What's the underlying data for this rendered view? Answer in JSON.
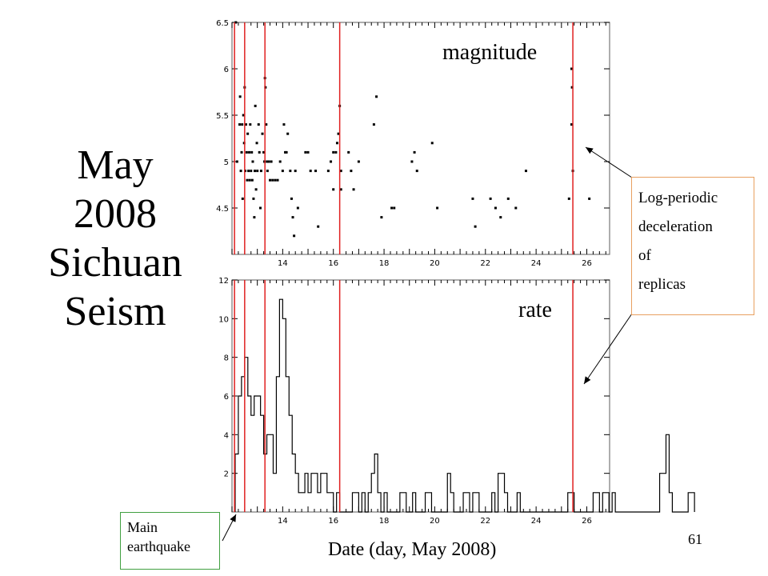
{
  "title_lines": [
    "May",
    "2008",
    "Sichuan",
    "Seism"
  ],
  "callout": {
    "lines": [
      "Log-periodic",
      "deceleration",
      "of",
      "replicas"
    ]
  },
  "main_box": {
    "lines": [
      "Main",
      "earthquake"
    ]
  },
  "x_axis_label": "Date (day, May 2008)",
  "page_number": "61",
  "colors": {
    "marker_lines": "#e02020",
    "data": "#000000",
    "callout_border": "#e8a060",
    "main_box_border": "#41a041",
    "arrow": "#000000"
  },
  "chart_data": [
    {
      "type": "scatter",
      "panel_label": "magnitude",
      "xlim": [
        12.0,
        26.9
      ],
      "ylim": [
        4.0,
        6.5
      ],
      "x_ticks": [
        14,
        16,
        18,
        20,
        22,
        24,
        26
      ],
      "y_ticks": [
        4.5,
        5,
        5.5,
        6,
        6.5
      ],
      "y_tick_labels": [
        "4.5",
        "5",
        "5.5",
        "6",
        "6.5"
      ],
      "vertical_markers": [
        12.1,
        12.5,
        13.3,
        16.25,
        25.45
      ],
      "points": [
        [
          12.15,
          6.5
        ],
        [
          12.2,
          5.0
        ],
        [
          12.3,
          5.4
        ],
        [
          12.32,
          5.7
        ],
        [
          12.35,
          4.9
        ],
        [
          12.38,
          5.1
        ],
        [
          12.4,
          5.4
        ],
        [
          12.42,
          4.6
        ],
        [
          12.45,
          5.5
        ],
        [
          12.48,
          5.2
        ],
        [
          12.5,
          5.8
        ],
        [
          12.52,
          4.9
        ],
        [
          12.55,
          5.4
        ],
        [
          12.58,
          5.1
        ],
        [
          12.6,
          4.8
        ],
        [
          12.62,
          5.3
        ],
        [
          12.65,
          4.9
        ],
        [
          12.68,
          5.1
        ],
        [
          12.7,
          4.8
        ],
        [
          12.72,
          5.4
        ],
        [
          12.75,
          4.9
        ],
        [
          12.78,
          5.1
        ],
        [
          12.8,
          4.8
        ],
        [
          12.82,
          5.0
        ],
        [
          12.85,
          4.6
        ],
        [
          12.88,
          4.4
        ],
        [
          12.9,
          4.9
        ],
        [
          12.92,
          5.6
        ],
        [
          12.95,
          4.7
        ],
        [
          12.98,
          5.2
        ],
        [
          13.0,
          4.9
        ],
        [
          13.05,
          5.4
        ],
        [
          13.08,
          5.1
        ],
        [
          13.12,
          4.5
        ],
        [
          13.15,
          4.9
        ],
        [
          13.2,
          5.3
        ],
        [
          13.25,
          5.1
        ],
        [
          13.28,
          5.0
        ],
        [
          13.3,
          5.9
        ],
        [
          13.32,
          5.8
        ],
        [
          13.35,
          5.4
        ],
        [
          13.38,
          5.0
        ],
        [
          13.4,
          4.9
        ],
        [
          13.45,
          5.0
        ],
        [
          13.5,
          4.8
        ],
        [
          13.55,
          5.0
        ],
        [
          13.6,
          4.8
        ],
        [
          13.7,
          4.8
        ],
        [
          13.8,
          4.8
        ],
        [
          13.9,
          5.0
        ],
        [
          14.0,
          4.9
        ],
        [
          14.05,
          5.4
        ],
        [
          14.1,
          5.1
        ],
        [
          14.15,
          5.1
        ],
        [
          14.2,
          5.3
        ],
        [
          14.3,
          4.9
        ],
        [
          14.35,
          4.6
        ],
        [
          14.4,
          4.4
        ],
        [
          14.45,
          4.2
        ],
        [
          14.5,
          4.9
        ],
        [
          14.6,
          4.5
        ],
        [
          14.9,
          5.1
        ],
        [
          15.0,
          5.1
        ],
        [
          15.1,
          4.9
        ],
        [
          15.3,
          4.9
        ],
        [
          15.4,
          4.3
        ],
        [
          15.8,
          4.9
        ],
        [
          15.9,
          5.0
        ],
        [
          16.0,
          4.7
        ],
        [
          16.0,
          5.1
        ],
        [
          16.1,
          5.1
        ],
        [
          16.15,
          5.2
        ],
        [
          16.2,
          5.3
        ],
        [
          16.25,
          5.6
        ],
        [
          16.3,
          4.9
        ],
        [
          16.3,
          4.7
        ],
        [
          16.6,
          5.1
        ],
        [
          16.7,
          4.9
        ],
        [
          16.8,
          4.7
        ],
        [
          17.0,
          5.0
        ],
        [
          17.6,
          5.4
        ],
        [
          17.7,
          5.7
        ],
        [
          17.9,
          4.4
        ],
        [
          18.3,
          4.5
        ],
        [
          18.4,
          4.5
        ],
        [
          19.1,
          5.0
        ],
        [
          19.2,
          5.1
        ],
        [
          19.3,
          4.9
        ],
        [
          19.9,
          5.2
        ],
        [
          20.1,
          4.5
        ],
        [
          21.5,
          4.6
        ],
        [
          21.6,
          4.3
        ],
        [
          22.2,
          4.6
        ],
        [
          22.4,
          4.5
        ],
        [
          22.6,
          4.4
        ],
        [
          22.9,
          4.6
        ],
        [
          23.2,
          4.5
        ],
        [
          23.6,
          4.9
        ],
        [
          25.3,
          4.6
        ],
        [
          25.4,
          5.4
        ],
        [
          25.4,
          6.0
        ],
        [
          25.42,
          5.8
        ],
        [
          25.45,
          4.9
        ],
        [
          26.1,
          4.6
        ]
      ]
    },
    {
      "type": "line",
      "subtype": "step",
      "panel_label": "rate",
      "xlim": [
        12.0,
        26.9
      ],
      "ylim": [
        0,
        12
      ],
      "x_ticks": [
        14,
        16,
        18,
        20,
        22,
        24,
        26
      ],
      "y_ticks": [
        2,
        4,
        6,
        8,
        10,
        12
      ],
      "y_tick_labels": [
        "2",
        "4",
        "6",
        "8",
        "10",
        "12"
      ],
      "vertical_markers": [
        12.1,
        12.5,
        13.3,
        16.25,
        25.45
      ],
      "bin_width": 0.125,
      "bin_start": 12.125,
      "values": [
        3,
        6,
        7,
        8,
        6,
        5,
        6,
        6,
        5,
        3,
        4,
        4,
        2,
        7,
        11,
        10,
        7,
        5,
        3,
        2,
        1,
        1,
        2,
        1,
        2,
        2,
        1,
        2,
        2,
        1,
        1,
        0,
        1,
        0,
        0,
        0,
        0,
        1,
        1,
        0,
        1,
        0,
        1,
        2,
        3,
        1,
        0,
        1,
        0,
        0,
        0,
        0,
        1,
        1,
        0,
        0,
        1,
        0,
        0,
        0,
        1,
        1,
        0,
        0,
        0,
        0,
        0,
        2,
        1,
        0,
        0,
        0,
        1,
        1,
        0,
        1,
        1,
        0,
        0,
        0,
        0,
        1,
        0,
        2,
        2,
        1,
        0,
        0,
        0,
        1,
        0,
        0,
        0,
        0,
        0,
        0,
        0,
        0,
        0,
        0,
        0,
        0,
        0,
        0,
        0,
        1,
        1,
        0,
        0,
        0,
        0,
        0,
        0,
        1,
        1,
        0,
        1,
        1,
        0,
        1,
        0,
        0,
        0,
        0,
        0,
        0,
        0,
        0,
        0,
        0,
        0,
        0,
        0,
        0,
        2,
        2,
        4,
        1,
        0,
        0,
        0,
        0,
        0,
        1,
        1
      ]
    }
  ]
}
